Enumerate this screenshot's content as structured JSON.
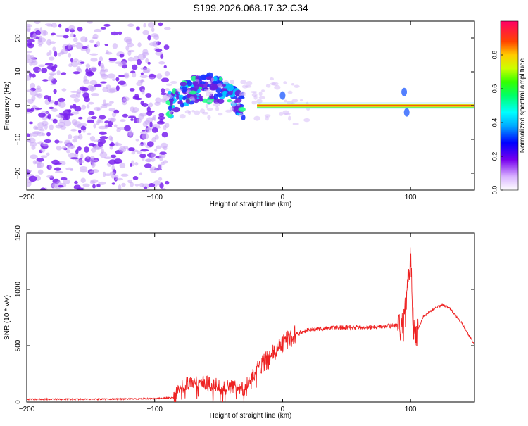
{
  "title": "S199.2026.068.17.32.C34",
  "chart_data": [
    {
      "type": "heatmap",
      "name": "spectrogram",
      "xlabel": "Height of straight line (km)",
      "ylabel": "Frequency (Hz)",
      "xlim": [
        -200,
        150
      ],
      "ylim": [
        -25,
        25
      ],
      "xticks": [
        -200,
        -100,
        0,
        100
      ],
      "yticks": [
        -20,
        -10,
        0,
        10,
        20
      ],
      "colorbar": {
        "label": "Normalized spectral amplitude",
        "range": [
          0,
          1
        ],
        "ticks": [
          0.0,
          0.2,
          0.4,
          0.6,
          0.8
        ]
      },
      "features": [
        {
          "description": "noise",
          "x_range": [
            -200,
            -90
          ],
          "freq_range": [
            -25,
            25
          ],
          "amplitude": 0.1
        },
        {
          "description": "band",
          "x_range": [
            -90,
            -30
          ],
          "freq_center": [
            0,
            5
          ],
          "amplitude": 0.35
        },
        {
          "description": "carrier",
          "x_range": [
            -20,
            150
          ],
          "freq_center": 0,
          "amplitude": 0.95
        }
      ]
    },
    {
      "type": "line",
      "name": "snr",
      "xlabel": "Height of straight line (km)",
      "ylabel": "SNR (10 * v/v)",
      "xlim": [
        -200,
        150
      ],
      "ylim": [
        0,
        1500
      ],
      "xticks": [
        -200,
        -100,
        0,
        100
      ],
      "yticks": [
        0,
        500,
        1000,
        1500
      ],
      "color": "#ee2222",
      "series": [
        {
          "name": "SNR",
          "x": [
            -200,
            -150,
            -100,
            -85,
            -80,
            -70,
            -60,
            -50,
            -40,
            -30,
            -20,
            -10,
            0,
            10,
            20,
            40,
            60,
            80,
            95,
            98,
            100,
            102,
            104,
            110,
            120,
            125,
            130,
            140,
            150
          ],
          "y": [
            25,
            25,
            30,
            40,
            140,
            180,
            170,
            150,
            140,
            120,
            290,
            390,
            520,
            600,
            640,
            660,
            660,
            670,
            690,
            1050,
            1350,
            700,
            600,
            760,
            840,
            860,
            840,
            700,
            510
          ]
        }
      ]
    }
  ]
}
